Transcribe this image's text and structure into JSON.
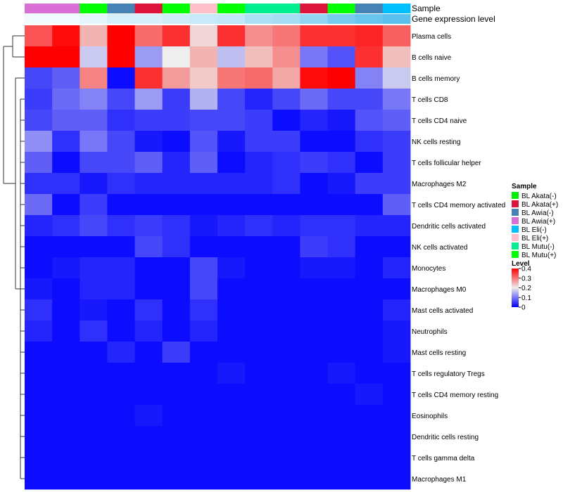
{
  "chart_data": {
    "type": "heatmap",
    "annotation_labels": [
      "Sample",
      "Gene expression level"
    ],
    "sample_row": [
      "BL Awia(+)",
      "BL Awia(+)",
      "BL Mutu(+)",
      "BL Awia(-)",
      "BL Akata(+)",
      "BL Mutu(+)",
      "BL Eli(+)",
      "BL Mutu(+)",
      "BL Mutu(-)",
      "BL Mutu(-)",
      "BL Akata(+)",
      "BL Mutu(+)",
      "BL Awia(-)",
      "BL Eli(-)"
    ],
    "expression_row": [
      0.02,
      0.02,
      0.04,
      0.06,
      0.06,
      0.07,
      0.08,
      0.09,
      0.12,
      0.13,
      0.16,
      0.2,
      0.22,
      0.24
    ],
    "rows": [
      "Plasma cells",
      "B cells naive",
      "B cells memory",
      "T cells CD8",
      "T cells CD4 naive",
      "NK cells resting",
      "T cells follicular helper",
      "Macrophages M2",
      "T cells CD4 memory activated",
      "Dendritic cells activated",
      "NK cells activated",
      "Monocytes",
      "Macrophages M0",
      "Mast cells activated",
      "Neutrophils",
      "Mast cells resting",
      "T cells regulatory  Tregs",
      "T cells CD4 memory resting",
      "Eosinophils",
      "Dendritic cells resting",
      "T cells gamma delta",
      "Macrophages M1"
    ],
    "values": [
      [
        0.33,
        0.39,
        0.25,
        0.4,
        0.31,
        0.36,
        0.22,
        0.36,
        0.28,
        0.3,
        0.36,
        0.36,
        0.37,
        0.32
      ],
      [
        0.4,
        0.4,
        0.17,
        0.4,
        0.13,
        0.2,
        0.25,
        0.16,
        0.24,
        0.28,
        0.1,
        0.07,
        0.36,
        0.24
      ],
      [
        0.06,
        0.08,
        0.29,
        0.01,
        0.36,
        0.27,
        0.23,
        0.3,
        0.31,
        0.26,
        0.39,
        0.4,
        0.11,
        0.17
      ],
      [
        0.05,
        0.09,
        0.11,
        0.06,
        0.13,
        0.05,
        0.15,
        0.06,
        0.03,
        0.06,
        0.09,
        0.06,
        0.06,
        0.1
      ],
      [
        0.06,
        0.08,
        0.08,
        0.04,
        0.05,
        0.05,
        0.06,
        0.06,
        0.05,
        0.01,
        0.03,
        0.02,
        0.07,
        0.08
      ],
      [
        0.12,
        0.04,
        0.1,
        0.06,
        0.02,
        0.01,
        0.07,
        0.02,
        0.05,
        0.05,
        0.01,
        0.01,
        0.04,
        0.05
      ],
      [
        0.08,
        0.01,
        0.06,
        0.06,
        0.08,
        0.03,
        0.08,
        0.01,
        0.03,
        0.04,
        0.05,
        0.04,
        0.01,
        0.05
      ],
      [
        0.04,
        0.04,
        0.02,
        0.04,
        0.03,
        0.03,
        0.03,
        0.03,
        0.03,
        0.04,
        0.01,
        0.02,
        0.05,
        0.05
      ],
      [
        0.09,
        0.01,
        0.05,
        0.01,
        0.01,
        0.01,
        0.01,
        0.01,
        0.01,
        0.01,
        0.01,
        0.01,
        0.01,
        0.08
      ],
      [
        0.03,
        0.04,
        0.06,
        0.04,
        0.05,
        0.04,
        0.02,
        0.03,
        0.04,
        0.03,
        0.04,
        0.04,
        0.03,
        0.03
      ],
      [
        0.01,
        0.01,
        0.01,
        0.01,
        0.06,
        0.04,
        0.01,
        0.01,
        0.01,
        0.01,
        0.05,
        0.04,
        0.01,
        0.01
      ],
      [
        0.01,
        0.02,
        0.03,
        0.03,
        0.01,
        0.01,
        0.06,
        0.02,
        0.01,
        0.01,
        0.02,
        0.02,
        0.01,
        0.03
      ],
      [
        0.02,
        0.01,
        0.03,
        0.03,
        0.01,
        0.01,
        0.06,
        0.01,
        0.01,
        0.01,
        0.01,
        0.01,
        0.01,
        0.01
      ],
      [
        0.04,
        0.01,
        0.02,
        0.01,
        0.04,
        0.01,
        0.04,
        0.01,
        0.01,
        0.01,
        0.01,
        0.01,
        0.01,
        0.03
      ],
      [
        0.03,
        0.01,
        0.04,
        0.01,
        0.03,
        0.01,
        0.03,
        0.01,
        0.01,
        0.01,
        0.01,
        0.01,
        0.01,
        0.02
      ],
      [
        0.01,
        0.01,
        0.01,
        0.03,
        0.01,
        0.05,
        0.01,
        0.01,
        0.01,
        0.01,
        0.01,
        0.01,
        0.01,
        0.02
      ],
      [
        0.01,
        0.01,
        0.01,
        0.01,
        0.01,
        0.01,
        0.01,
        0.02,
        0.01,
        0.01,
        0.01,
        0.02,
        0.01,
        0.01
      ],
      [
        0.01,
        0.01,
        0.01,
        0.01,
        0.01,
        0.01,
        0.01,
        0.01,
        0.01,
        0.01,
        0.01,
        0.01,
        0.02,
        0.01
      ],
      [
        0.01,
        0.01,
        0.01,
        0.01,
        0.02,
        0.01,
        0.01,
        0.01,
        0.01,
        0.01,
        0.01,
        0.01,
        0.01,
        0.01
      ],
      [
        0.01,
        0.01,
        0.01,
        0.01,
        0.01,
        0.01,
        0.01,
        0.01,
        0.01,
        0.01,
        0.01,
        0.01,
        0.01,
        0.01
      ],
      [
        0.01,
        0.01,
        0.01,
        0.01,
        0.01,
        0.01,
        0.01,
        0.01,
        0.01,
        0.01,
        0.01,
        0.01,
        0.01,
        0.01
      ],
      [
        0.01,
        0.01,
        0.01,
        0.01,
        0.01,
        0.01,
        0.01,
        0.01,
        0.01,
        0.01,
        0.01,
        0.01,
        0.01,
        0.01
      ]
    ],
    "legend_sample": {
      "title": "Sample",
      "items": [
        {
          "name": "BL Akata(-)",
          "color": "#00EE00"
        },
        {
          "name": "BL Akata(+)",
          "color": "#DC143C"
        },
        {
          "name": "BL Awia(-)",
          "color": "#4682B4"
        },
        {
          "name": "BL Awia(+)",
          "color": "#DA70D6"
        },
        {
          "name": "BL Eli(-)",
          "color": "#00BFFF"
        },
        {
          "name": "BL Eli(+)",
          "color": "#FFC0CB"
        },
        {
          "name": "BL Mutu(-)",
          "color": "#00EE90"
        },
        {
          "name": "BL Mutu(+)",
          "color": "#00FF00"
        }
      ]
    },
    "legend_level": {
      "title": "Level",
      "ticks": [
        "0.4",
        "0.3",
        "0.2",
        "0.1",
        "0"
      ],
      "range": [
        0,
        0.4
      ]
    },
    "color_scale": {
      "low": "#0000FF",
      "mid": "#EEEEEE",
      "high": "#FF0000",
      "mid_value": 0.2
    },
    "expression_scale": {
      "low": "#FFFFFF",
      "high": "#5BC0EB"
    }
  }
}
